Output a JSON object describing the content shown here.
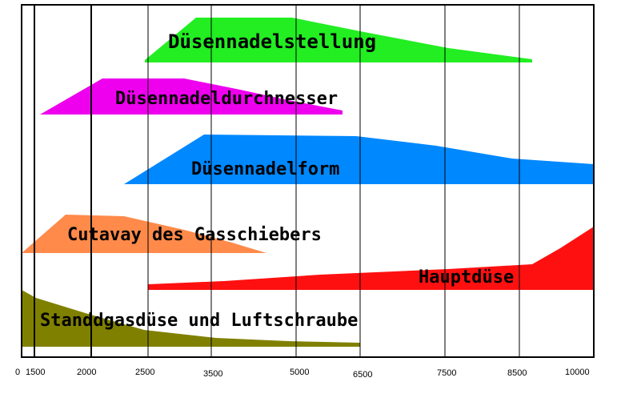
{
  "colors": {
    "background": "#ffffff",
    "frame": "#000000",
    "grid": "#000000",
    "needle_position": "#22ee22",
    "needle_diameter": "#ee00ee",
    "needle_shape": "#0088ff",
    "slide_cutaway": "#ff8a4a",
    "main_jet": "#ff1010",
    "idle_jet": "#808000"
  },
  "bands": {
    "needle_position": "Düsennadelstellung",
    "needle_diameter": "Düsennadeldurchnesser",
    "needle_shape": "Düsennadelform",
    "slide_cutaway": "Cutavay des Gasschiebers",
    "main_jet": "Hauptdüse",
    "idle_jet": "Standdgasdüse und Luftschraube"
  },
  "axis": {
    "ticks": [
      "0",
      "1500",
      "2000",
      "2500",
      "3500",
      "5000",
      "6500",
      "7500",
      "8500",
      "10000"
    ]
  }
}
